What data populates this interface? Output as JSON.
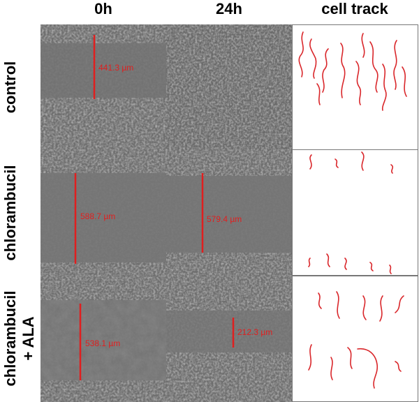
{
  "header": {
    "columns": [
      "0h",
      "24h",
      "cell track"
    ]
  },
  "rows": [
    {
      "label": [
        "control"
      ],
      "measure_0h": "441.3 µm"
    },
    {
      "label": [
        "chlorambucil"
      ],
      "measure_0h": "588.7 µm",
      "measure_24h": "579.4 µm"
    },
    {
      "label": [
        "chlorambucil",
        "+ ALA"
      ],
      "measure_0h": "538.1 µm",
      "measure_24h": "212.3 µm"
    }
  ]
}
